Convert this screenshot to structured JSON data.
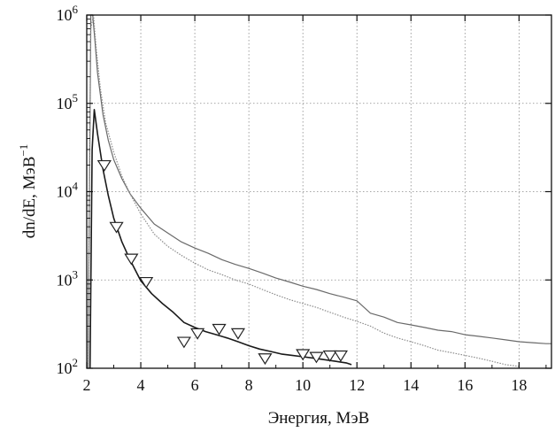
{
  "chart_data": {
    "type": "line",
    "xlabel": "Энергия, МэВ",
    "ylabel": "dn/dE, МэВ",
    "ylabel_sup": "−1",
    "x_scale": "linear",
    "y_scale": "log",
    "xlim": [
      2,
      19.2
    ],
    "ylim": [
      100,
      1000000
    ],
    "x_ticks": [
      2,
      4,
      6,
      8,
      10,
      12,
      14,
      16,
      18
    ],
    "y_ticks": [
      {
        "value": 100,
        "base": "10",
        "exp": "2"
      },
      {
        "value": 1000,
        "base": "10",
        "exp": "3"
      },
      {
        "value": 10000,
        "base": "10",
        "exp": "4"
      },
      {
        "value": 100000,
        "base": "10",
        "exp": "5"
      },
      {
        "value": 1000000,
        "base": "10",
        "exp": "6"
      }
    ],
    "grid": true,
    "grid_style": "dotted",
    "series": [
      {
        "style": "solid-gray",
        "color": "#6a6a6a",
        "x": [
          2.05,
          2.15,
          2.22,
          2.3,
          2.4,
          2.6,
          2.8,
          3.0,
          3.3,
          3.6,
          4.0,
          4.5,
          5.0,
          5.5,
          6.0,
          6.5,
          7.0,
          7.5,
          8.0,
          8.5,
          9.0,
          9.5,
          10.0,
          10.5,
          11.0,
          11.5,
          12.0,
          12.5,
          13.0,
          13.5,
          14.0,
          14.5,
          15.0,
          15.5,
          16.0,
          16.5,
          17.0,
          17.5,
          18.0,
          18.5,
          19.0,
          19.2
        ],
        "y": [
          100,
          1000000,
          1000000,
          520000,
          220000,
          75000,
          38000,
          23000,
          14000,
          9500,
          6500,
          4300,
          3400,
          2700,
          2300,
          2000,
          1700,
          1500,
          1350,
          1200,
          1050,
          950,
          850,
          780,
          700,
          640,
          580,
          420,
          380,
          330,
          310,
          290,
          270,
          260,
          240,
          230,
          220,
          210,
          200,
          195,
          190,
          190
        ]
      },
      {
        "style": "dotted-gray",
        "color": "#8c8c8c",
        "x": [
          2.05,
          2.15,
          2.25,
          2.35,
          2.5,
          2.7,
          3.0,
          3.3,
          3.6,
          4.0,
          4.5,
          5.0,
          5.5,
          6.0,
          6.5,
          7.0,
          7.5,
          8.0,
          8.5,
          9.0,
          9.5,
          10.0,
          10.5,
          11.0,
          11.5,
          12.0,
          12.5,
          13.0,
          13.5,
          14.0,
          14.5,
          15.0,
          15.5,
          16.0,
          16.5,
          17.0,
          17.5,
          18.0
        ],
        "y": [
          100,
          700000,
          1000000,
          420000,
          150000,
          60000,
          28000,
          15000,
          9500,
          5600,
          3300,
          2400,
          1900,
          1550,
          1300,
          1150,
          1000,
          900,
          780,
          680,
          600,
          540,
          490,
          430,
          380,
          340,
          300,
          250,
          220,
          200,
          180,
          160,
          150,
          140,
          130,
          120,
          110,
          105
        ]
      },
      {
        "style": "solid-black-triangles",
        "color": "#1a1a1a",
        "x": [
          2.12,
          2.2,
          2.28,
          2.4,
          2.6,
          2.8,
          3.0,
          3.3,
          3.6,
          4.0,
          4.4,
          4.8,
          5.2,
          5.6,
          6.0,
          6.4,
          6.8,
          7.2,
          7.6,
          8.0,
          8.4,
          8.8,
          9.2,
          9.6,
          10.0,
          10.4,
          10.8,
          11.2,
          11.6,
          11.8
        ],
        "y": [
          100,
          30000,
          85000,
          45000,
          18000,
          9000,
          5000,
          2700,
          1700,
          980,
          700,
          540,
          430,
          330,
          290,
          260,
          240,
          220,
          200,
          180,
          165,
          155,
          145,
          140,
          135,
          130,
          125,
          120,
          115,
          110
        ]
      }
    ],
    "markers": {
      "shape": "triangle-down",
      "series": 2,
      "x": [
        2.65,
        3.1,
        3.65,
        4.2,
        5.6,
        6.1,
        6.9,
        7.6,
        8.6,
        10.0,
        10.5,
        11.0,
        11.4
      ],
      "y": [
        20000,
        4000,
        1750,
        950,
        200,
        250,
        280,
        250,
        130,
        145,
        135,
        140,
        140
      ]
    }
  }
}
